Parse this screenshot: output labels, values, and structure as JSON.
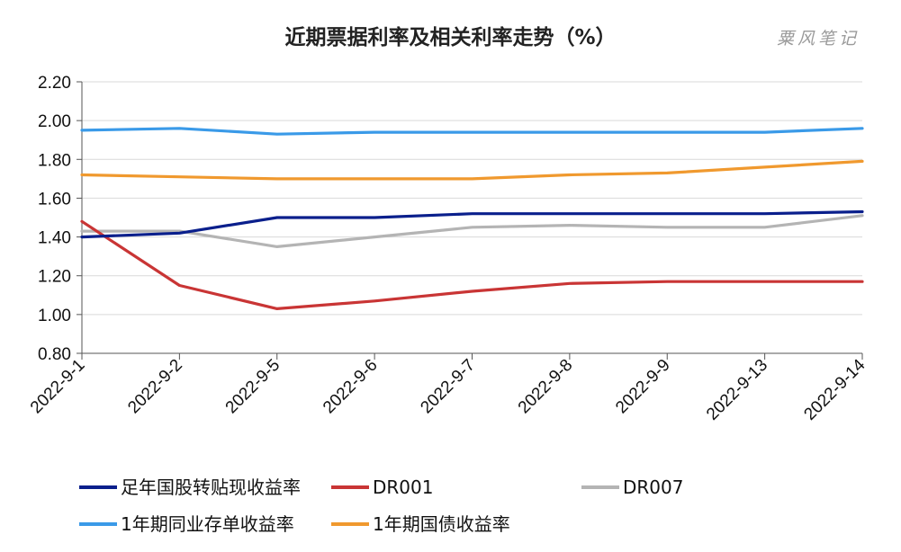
{
  "chart_data": {
    "type": "line",
    "title": "近期票据利率及相关利率走势（%）",
    "watermark": "粟风笔记",
    "x": [
      "2022-9-1",
      "2022-9-2",
      "2022-9-5",
      "2022-9-6",
      "2022-9-7",
      "2022-9-8",
      "2022-9-9",
      "2022-9-13",
      "2022-9-14"
    ],
    "ylim": [
      0.8,
      2.2
    ],
    "yticks": [
      "0.80",
      "1.00",
      "1.20",
      "1.40",
      "1.60",
      "1.80",
      "2.00",
      "2.20"
    ],
    "grid": true,
    "legend_position": "bottom",
    "series": [
      {
        "name": "足年国股转贴现收益率",
        "color": "#0a1f8c",
        "values": [
          1.4,
          1.42,
          1.5,
          1.5,
          1.52,
          1.52,
          1.52,
          1.52,
          1.53
        ]
      },
      {
        "name": "DR001",
        "color": "#c93535",
        "values": [
          1.48,
          1.15,
          1.03,
          1.07,
          1.12,
          1.16,
          1.17,
          1.17,
          1.17
        ]
      },
      {
        "name": "DR007",
        "color": "#b4b4b4",
        "values": [
          1.43,
          1.43,
          1.35,
          1.4,
          1.45,
          1.46,
          1.45,
          1.45,
          1.51
        ]
      },
      {
        "name": "1年期同业存单收益率",
        "color": "#3a9ae8",
        "values": [
          1.95,
          1.96,
          1.93,
          1.94,
          1.94,
          1.94,
          1.94,
          1.94,
          1.96
        ]
      },
      {
        "name": "1年期国债收益率",
        "color": "#f0992e",
        "values": [
          1.72,
          1.71,
          1.7,
          1.7,
          1.7,
          1.72,
          1.73,
          1.76,
          1.79
        ]
      }
    ]
  }
}
